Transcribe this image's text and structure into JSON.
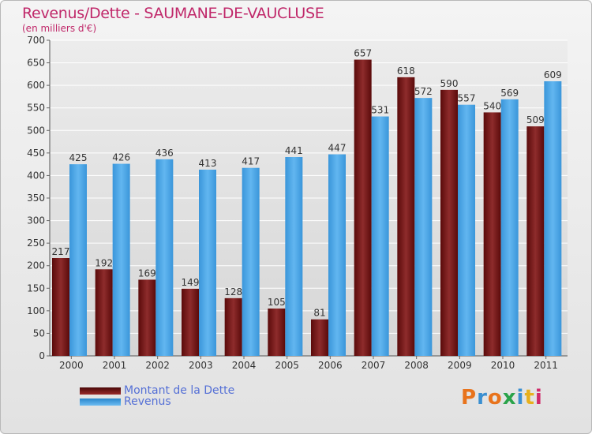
{
  "chart_data": {
    "type": "bar",
    "title": "Revenus/Dette - SAUMANE-DE-VAUCLUSE",
    "subtitle": "(en milliers d'€)",
    "categories": [
      "2000",
      "2001",
      "2002",
      "2003",
      "2004",
      "2005",
      "2006",
      "2007",
      "2008",
      "2009",
      "2010",
      "2011"
    ],
    "series": [
      {
        "name": "Montant de la Dette",
        "color": "#7a1414",
        "values": [
          217,
          192,
          169,
          149,
          128,
          105,
          81,
          657,
          618,
          590,
          540,
          509
        ]
      },
      {
        "name": "Revenus",
        "color": "#4da6e6",
        "values": [
          425,
          426,
          436,
          413,
          417,
          441,
          447,
          531,
          572,
          557,
          569,
          609
        ]
      }
    ],
    "ylim": [
      0,
      700
    ],
    "yticks": [
      0,
      50,
      100,
      150,
      200,
      250,
      300,
      350,
      400,
      450,
      500,
      550,
      600,
      650,
      700
    ],
    "grid": true,
    "legend_position": "bottom-left"
  },
  "logo": {
    "text": "Proxiti",
    "colors": [
      "#e8731c",
      "#3a8fd1",
      "#e8731c",
      "#2aa34a",
      "#3a8fd1",
      "#e8b01c",
      "#d02a6a"
    ]
  }
}
